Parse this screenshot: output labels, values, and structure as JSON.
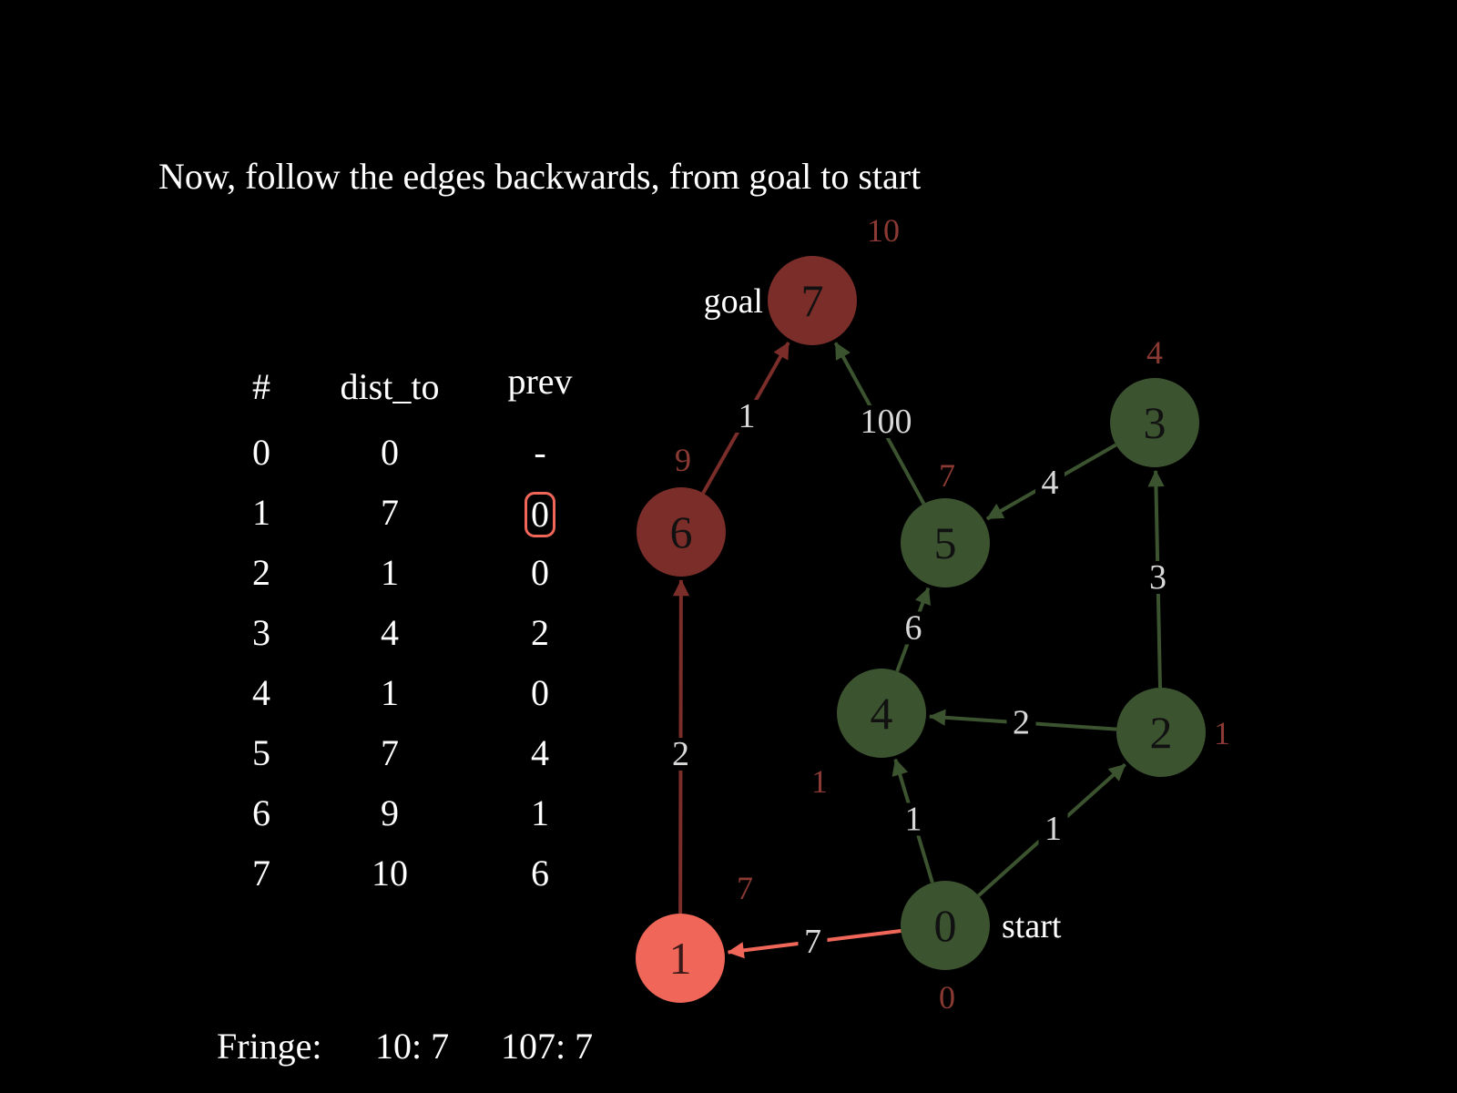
{
  "caption": "Now, follow the edges backwards, from goal to start",
  "table": {
    "headers": [
      "#",
      "dist_to",
      "prev"
    ],
    "rows": [
      [
        "0",
        "0",
        "-"
      ],
      [
        "1",
        "7",
        "0"
      ],
      [
        "2",
        "1",
        "0"
      ],
      [
        "3",
        "4",
        "2"
      ],
      [
        "4",
        "1",
        "0"
      ],
      [
        "5",
        "7",
        "4"
      ],
      [
        "6",
        "9",
        "1"
      ],
      [
        "7",
        "10",
        "6"
      ]
    ],
    "highlight_row": 1
  },
  "fringe": {
    "label": "Fringe:",
    "items": [
      "10: 7",
      "107: 7"
    ]
  },
  "graph": {
    "colors": {
      "visited": "#3c5330",
      "path": "#7b2d29",
      "current": "#f0675a",
      "dist_label": "#8b3a33",
      "edge_label": "#d9d9d9"
    },
    "nodes": [
      {
        "id": "0",
        "dist": "0",
        "role": "visited",
        "tag": "start"
      },
      {
        "id": "1",
        "dist": "7",
        "role": "current"
      },
      {
        "id": "2",
        "dist": "1",
        "role": "visited"
      },
      {
        "id": "3",
        "dist": "4",
        "role": "visited"
      },
      {
        "id": "4",
        "dist": "1",
        "role": "visited"
      },
      {
        "id": "5",
        "dist": "7",
        "role": "visited"
      },
      {
        "id": "6",
        "dist": "9",
        "role": "path"
      },
      {
        "id": "7",
        "dist": "10",
        "role": "path",
        "tag": "goal"
      }
    ],
    "edges": [
      {
        "from": "0",
        "to": "1",
        "weight": "7",
        "role": "current"
      },
      {
        "from": "0",
        "to": "4",
        "weight": "1",
        "role": "visited"
      },
      {
        "from": "0",
        "to": "2",
        "weight": "1",
        "role": "visited"
      },
      {
        "from": "2",
        "to": "4",
        "weight": "2",
        "role": "visited"
      },
      {
        "from": "2",
        "to": "3",
        "weight": "3",
        "role": "visited"
      },
      {
        "from": "3",
        "to": "5",
        "weight": "4",
        "role": "visited"
      },
      {
        "from": "4",
        "to": "5",
        "weight": "6",
        "role": "visited"
      },
      {
        "from": "5",
        "to": "7",
        "weight": "100",
        "role": "visited"
      },
      {
        "from": "1",
        "to": "6",
        "weight": "2",
        "role": "path"
      },
      {
        "from": "6",
        "to": "7",
        "weight": "1",
        "role": "path"
      }
    ]
  }
}
